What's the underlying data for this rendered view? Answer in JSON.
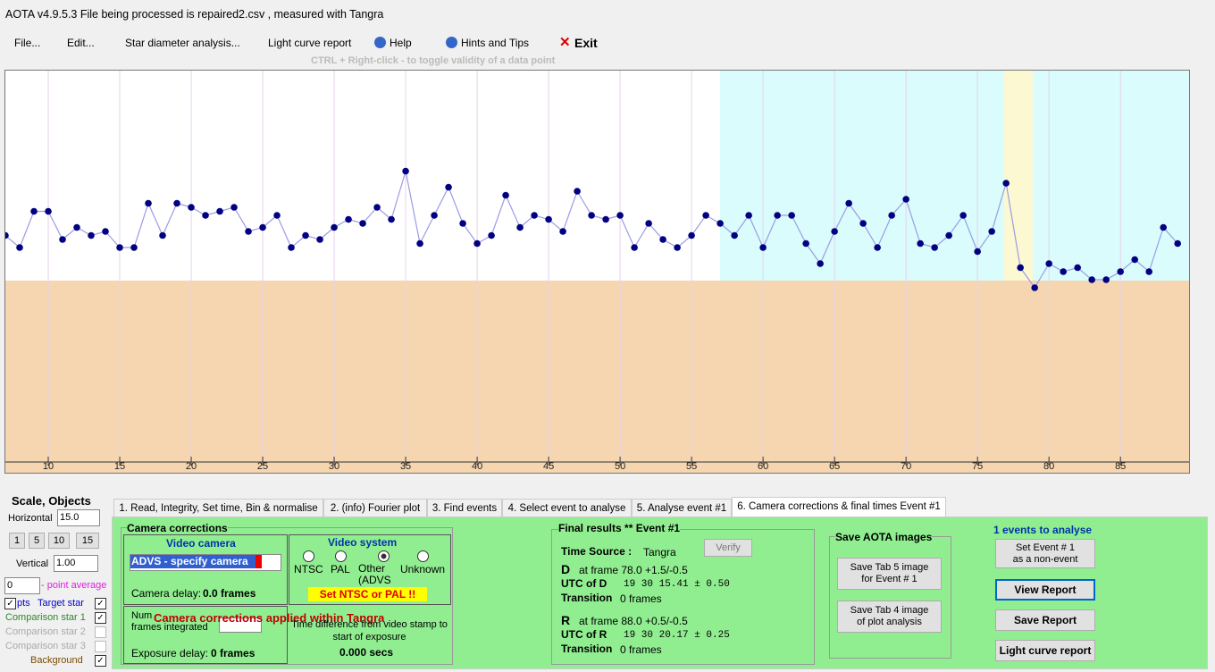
{
  "title_bar": "AOTA v4.9.5.3   File being processed is  repaired2.csv ,  measured with Tangra",
  "menu": [
    "File...",
    "Edit...",
    "Star diameter analysis...",
    "Light curve report",
    "Help",
    "Hints and Tips",
    "Exit"
  ],
  "hint": "CTRL + Right-click   -   to toggle validity of a data point",
  "chart_data": {
    "type": "scatter",
    "x": [
      7,
      8,
      9,
      10,
      11,
      12,
      13,
      14,
      15,
      16,
      17,
      18,
      19,
      20,
      21,
      22,
      23,
      24,
      25,
      26,
      27,
      28,
      29,
      30,
      31,
      32,
      33,
      34,
      35,
      36,
      37,
      38,
      39,
      40,
      41,
      42,
      43,
      44,
      45,
      46,
      47,
      48,
      49,
      50,
      51,
      52,
      53,
      54,
      55,
      56,
      57,
      58,
      59,
      60,
      61,
      62,
      63,
      64,
      65,
      66,
      67,
      68,
      69,
      70,
      71,
      72,
      73,
      74,
      75,
      76,
      77,
      78,
      79,
      80,
      81,
      82,
      83,
      84,
      85,
      86,
      87,
      88,
      89
    ],
    "series": [
      {
        "name": "Target star",
        "color": "#000080",
        "values": [
          59,
          56,
          65,
          65,
          58,
          61,
          59,
          60,
          56,
          56,
          67,
          59,
          67,
          66,
          64,
          65,
          66,
          60,
          61,
          64,
          56,
          59,
          58,
          61,
          63,
          62,
          66,
          63,
          75,
          57,
          64,
          71,
          62,
          57,
          59,
          69,
          61,
          64,
          63,
          60,
          70,
          64,
          63,
          64,
          56,
          62,
          58,
          56,
          59,
          64,
          62,
          59,
          64,
          56,
          64,
          64,
          57,
          52,
          60,
          67,
          62,
          56,
          64,
          68,
          57,
          56,
          59,
          64,
          55,
          60,
          72,
          51,
          46,
          52,
          50,
          51,
          48,
          48,
          50,
          53,
          50,
          61,
          57
        ]
      }
    ],
    "xlim": [
      7,
      89.8
    ],
    "ylim": [
      0,
      100
    ],
    "xticks": [
      10,
      15,
      20,
      25,
      30,
      35,
      40,
      45,
      50,
      55,
      60,
      65,
      70,
      75,
      80,
      85
    ],
    "grid": true
  },
  "scale_objects": {
    "title": "Scale,  Objects",
    "horizontal_label": "Horizontal",
    "horizontal": "15.0",
    "buttons": [
      "1",
      "5",
      "10",
      "15"
    ],
    "vertical_label": "Vertical",
    "vertical": "1.00",
    "point_average": "0",
    "point_average_label": "- point average",
    "checks": [
      "pts",
      "Target star",
      "Comparison star 1",
      "Comparison star 2",
      "Comparison star 3",
      "Background"
    ]
  },
  "tabs": [
    "1.  Read, Integrity, Set time, Bin & normalise",
    "2. (info)  Fourier plot",
    "3. Find events",
    "4. Select event to analyse",
    "5. Analyse event #1",
    "6. Camera corrections & final times Event #1"
  ],
  "camera": {
    "title": "Camera corrections",
    "video_camera": "Video camera",
    "camera_select": "ADVS - specify camera",
    "camera_delay_label": "Camera delay:",
    "camera_delay": "0.0 frames",
    "video_system": "Video system",
    "radios": [
      "NTSC",
      "PAL",
      "Other\n(ADVS",
      "Unknown"
    ],
    "warning": "Set NTSC or PAL !!",
    "frames_integrated": "Num\nframes integrated",
    "applied": "Camera corrections applied within Tangra",
    "exposure_delay_label": "Exposure delay:",
    "exposure_delay": "0 frames",
    "time_diff_label": "Time difference from video stamp to start of exposure",
    "time_diff": "0.000 secs"
  },
  "final": {
    "title": "Final results  **  Event #1",
    "verify": "Verify",
    "time_source_label": "Time Source :",
    "time_source": "Tangra",
    "d_label": "D",
    "d_frame": "at frame 78.0 +1.5/-0.5",
    "utc_d_label": "UTC of D",
    "utc_d": "19 30 15.41 ± 0.50",
    "transition_label": "Transition",
    "d_transition": "0 frames",
    "r_label": "R",
    "r_frame": "at frame 88.0 +0.5/-0.5",
    "utc_r_label": "UTC of R",
    "utc_r": "19 30 20.17 ± 0.25",
    "r_transition": "0 frames"
  },
  "save_images": {
    "title": "Save AOTA images",
    "tab5": "Save Tab 5 image\nfor Event # 1",
    "tab4": "Save Tab 4 image\nof plot analysis"
  },
  "right": {
    "events": "1 events to analyse",
    "non_event": "Set Event # 1\nas a non-event",
    "view": "View Report",
    "save": "Save Report",
    "lc": "Light curve report"
  }
}
